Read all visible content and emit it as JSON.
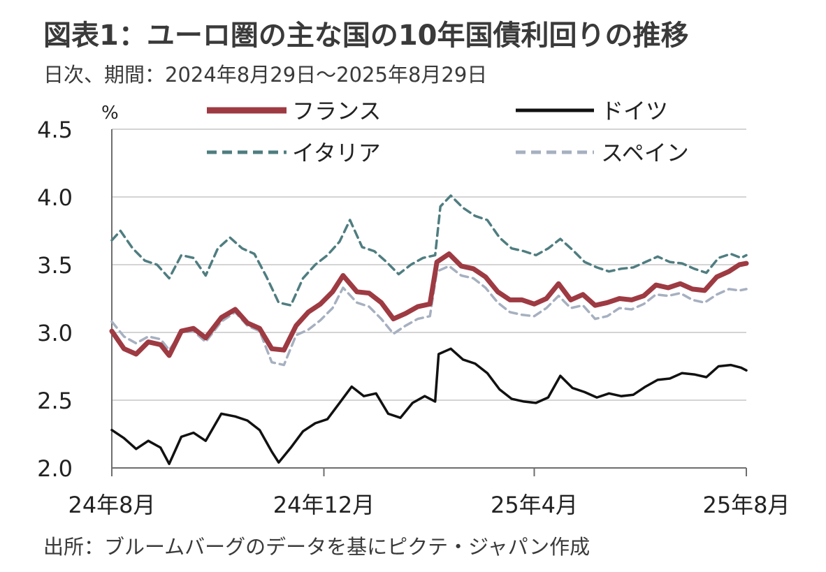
{
  "title": "図表1：ユーロ圏の主な国の10年国債利回りの推移",
  "subtitle": "日次、期間：2024年8月29日～2025年8月29日",
  "source": "出所：ブルームバーグのデータを基にピクテ・ジャパン作成",
  "chart_data": {
    "type": "line",
    "ylabel": "%",
    "ylim": [
      2.0,
      4.5
    ],
    "yticks": [
      "2.0",
      "2.5",
      "3.0",
      "3.5",
      "4.0",
      "4.5"
    ],
    "ytick_values": [
      2.0,
      2.5,
      3.0,
      3.5,
      4.0,
      4.5
    ],
    "xticks": [
      "24年8月",
      "24年12月",
      "25年4月",
      "25年8月"
    ],
    "xtick_values": [
      "2024-08-29",
      "2024-12-29",
      "2025-04-29",
      "2025-08-29"
    ],
    "xlim": [
      "2024-08-29",
      "2025-08-29"
    ],
    "grid": "horizontal",
    "legend": "top",
    "series": [
      {
        "name": "フランス",
        "color": "#9e3a42",
        "dash": "solid",
        "points": [
          [
            "2024-08-29",
            3.01
          ],
          [
            "2024-09-05",
            2.88
          ],
          [
            "2024-09-12",
            2.84
          ],
          [
            "2024-09-19",
            2.93
          ],
          [
            "2024-09-26",
            2.91
          ],
          [
            "2024-10-01",
            2.83
          ],
          [
            "2024-10-08",
            3.01
          ],
          [
            "2024-10-15",
            3.03
          ],
          [
            "2024-10-22",
            2.96
          ],
          [
            "2024-10-31",
            3.11
          ],
          [
            "2024-11-08",
            3.17
          ],
          [
            "2024-11-15",
            3.07
          ],
          [
            "2024-11-22",
            3.03
          ],
          [
            "2024-11-29",
            2.88
          ],
          [
            "2024-12-06",
            2.87
          ],
          [
            "2024-12-13",
            3.05
          ],
          [
            "2024-12-20",
            3.15
          ],
          [
            "2024-12-27",
            3.21
          ],
          [
            "2025-01-03",
            3.3
          ],
          [
            "2025-01-09",
            3.42
          ],
          [
            "2025-01-17",
            3.3
          ],
          [
            "2025-01-24",
            3.29
          ],
          [
            "2025-01-31",
            3.22
          ],
          [
            "2025-02-07",
            3.1
          ],
          [
            "2025-02-14",
            3.14
          ],
          [
            "2025-02-21",
            3.19
          ],
          [
            "2025-02-28",
            3.21
          ],
          [
            "2025-03-04",
            3.52
          ],
          [
            "2025-03-11",
            3.58
          ],
          [
            "2025-03-18",
            3.49
          ],
          [
            "2025-03-25",
            3.47
          ],
          [
            "2025-04-01",
            3.41
          ],
          [
            "2025-04-08",
            3.3
          ],
          [
            "2025-04-15",
            3.24
          ],
          [
            "2025-04-22",
            3.24
          ],
          [
            "2025-04-29",
            3.21
          ],
          [
            "2025-05-06",
            3.25
          ],
          [
            "2025-05-13",
            3.36
          ],
          [
            "2025-05-20",
            3.24
          ],
          [
            "2025-05-27",
            3.28
          ],
          [
            "2025-06-03",
            3.2
          ],
          [
            "2025-06-10",
            3.22
          ],
          [
            "2025-06-17",
            3.25
          ],
          [
            "2025-06-24",
            3.24
          ],
          [
            "2025-07-01",
            3.27
          ],
          [
            "2025-07-08",
            3.35
          ],
          [
            "2025-07-15",
            3.33
          ],
          [
            "2025-07-22",
            3.36
          ],
          [
            "2025-07-29",
            3.32
          ],
          [
            "2025-08-05",
            3.31
          ],
          [
            "2025-08-12",
            3.41
          ],
          [
            "2025-08-19",
            3.45
          ],
          [
            "2025-08-25",
            3.5
          ],
          [
            "2025-08-29",
            3.51
          ]
        ]
      },
      {
        "name": "ドイツ",
        "color": "#111111",
        "dash": "solid",
        "points": [
          [
            "2024-08-29",
            2.28
          ],
          [
            "2024-09-05",
            2.22
          ],
          [
            "2024-09-12",
            2.14
          ],
          [
            "2024-09-19",
            2.2
          ],
          [
            "2024-09-26",
            2.15
          ],
          [
            "2024-10-01",
            2.03
          ],
          [
            "2024-10-08",
            2.23
          ],
          [
            "2024-10-15",
            2.26
          ],
          [
            "2024-10-22",
            2.2
          ],
          [
            "2024-10-31",
            2.4
          ],
          [
            "2024-11-08",
            2.38
          ],
          [
            "2024-11-15",
            2.35
          ],
          [
            "2024-11-22",
            2.28
          ],
          [
            "2024-11-29",
            2.12
          ],
          [
            "2024-12-03",
            2.04
          ],
          [
            "2024-12-10",
            2.15
          ],
          [
            "2024-12-17",
            2.27
          ],
          [
            "2024-12-24",
            2.33
          ],
          [
            "2024-12-31",
            2.36
          ],
          [
            "2025-01-07",
            2.48
          ],
          [
            "2025-01-14",
            2.6
          ],
          [
            "2025-01-21",
            2.53
          ],
          [
            "2025-01-28",
            2.55
          ],
          [
            "2025-02-04",
            2.4
          ],
          [
            "2025-02-11",
            2.37
          ],
          [
            "2025-02-18",
            2.48
          ],
          [
            "2025-02-25",
            2.53
          ],
          [
            "2025-03-03",
            2.49
          ],
          [
            "2025-03-05",
            2.84
          ],
          [
            "2025-03-12",
            2.88
          ],
          [
            "2025-03-19",
            2.8
          ],
          [
            "2025-03-26",
            2.77
          ],
          [
            "2025-04-02",
            2.7
          ],
          [
            "2025-04-09",
            2.58
          ],
          [
            "2025-04-16",
            2.51
          ],
          [
            "2025-04-23",
            2.49
          ],
          [
            "2025-04-30",
            2.48
          ],
          [
            "2025-05-07",
            2.52
          ],
          [
            "2025-05-14",
            2.68
          ],
          [
            "2025-05-21",
            2.59
          ],
          [
            "2025-05-28",
            2.56
          ],
          [
            "2025-06-04",
            2.52
          ],
          [
            "2025-06-11",
            2.55
          ],
          [
            "2025-06-18",
            2.53
          ],
          [
            "2025-06-25",
            2.54
          ],
          [
            "2025-07-02",
            2.6
          ],
          [
            "2025-07-09",
            2.65
          ],
          [
            "2025-07-16",
            2.66
          ],
          [
            "2025-07-23",
            2.7
          ],
          [
            "2025-07-30",
            2.69
          ],
          [
            "2025-08-06",
            2.67
          ],
          [
            "2025-08-13",
            2.75
          ],
          [
            "2025-08-20",
            2.76
          ],
          [
            "2025-08-26",
            2.74
          ],
          [
            "2025-08-29",
            2.72
          ]
        ]
      },
      {
        "name": "イタリア",
        "color": "#4f7d80",
        "dash": "dashed",
        "points": [
          [
            "2024-08-29",
            3.68
          ],
          [
            "2024-09-03",
            3.75
          ],
          [
            "2024-09-10",
            3.62
          ],
          [
            "2024-09-17",
            3.53
          ],
          [
            "2024-09-24",
            3.5
          ],
          [
            "2024-10-01",
            3.4
          ],
          [
            "2024-10-08",
            3.57
          ],
          [
            "2024-10-15",
            3.55
          ],
          [
            "2024-10-22",
            3.42
          ],
          [
            "2024-10-29",
            3.62
          ],
          [
            "2024-11-05",
            3.7
          ],
          [
            "2024-11-12",
            3.62
          ],
          [
            "2024-11-19",
            3.58
          ],
          [
            "2024-11-26",
            3.41
          ],
          [
            "2024-12-03",
            3.22
          ],
          [
            "2024-12-10",
            3.2
          ],
          [
            "2024-12-17",
            3.4
          ],
          [
            "2024-12-24",
            3.5
          ],
          [
            "2024-12-31",
            3.57
          ],
          [
            "2025-01-07",
            3.67
          ],
          [
            "2025-01-13",
            3.83
          ],
          [
            "2025-01-20",
            3.63
          ],
          [
            "2025-01-27",
            3.6
          ],
          [
            "2025-02-03",
            3.52
          ],
          [
            "2025-02-10",
            3.43
          ],
          [
            "2025-02-17",
            3.5
          ],
          [
            "2025-02-24",
            3.55
          ],
          [
            "2025-03-03",
            3.57
          ],
          [
            "2025-03-06",
            3.93
          ],
          [
            "2025-03-12",
            4.01
          ],
          [
            "2025-03-19",
            3.92
          ],
          [
            "2025-03-26",
            3.86
          ],
          [
            "2025-04-02",
            3.83
          ],
          [
            "2025-04-09",
            3.7
          ],
          [
            "2025-04-16",
            3.62
          ],
          [
            "2025-04-23",
            3.6
          ],
          [
            "2025-04-30",
            3.57
          ],
          [
            "2025-05-07",
            3.62
          ],
          [
            "2025-05-14",
            3.69
          ],
          [
            "2025-05-21",
            3.61
          ],
          [
            "2025-05-28",
            3.52
          ],
          [
            "2025-06-04",
            3.48
          ],
          [
            "2025-06-11",
            3.45
          ],
          [
            "2025-06-18",
            3.47
          ],
          [
            "2025-06-25",
            3.48
          ],
          [
            "2025-07-02",
            3.52
          ],
          [
            "2025-07-09",
            3.56
          ],
          [
            "2025-07-16",
            3.52
          ],
          [
            "2025-07-23",
            3.51
          ],
          [
            "2025-07-30",
            3.47
          ],
          [
            "2025-08-06",
            3.44
          ],
          [
            "2025-08-13",
            3.55
          ],
          [
            "2025-08-20",
            3.58
          ],
          [
            "2025-08-26",
            3.55
          ],
          [
            "2025-08-29",
            3.57
          ]
        ]
      },
      {
        "name": "スペイン",
        "color": "#a6b0c0",
        "dash": "dashed",
        "points": [
          [
            "2024-08-29",
            3.08
          ],
          [
            "2024-09-05",
            2.97
          ],
          [
            "2024-09-12",
            2.92
          ],
          [
            "2024-09-19",
            2.97
          ],
          [
            "2024-09-26",
            2.95
          ],
          [
            "2024-10-01",
            2.87
          ],
          [
            "2024-10-08",
            3.0
          ],
          [
            "2024-10-15",
            3.01
          ],
          [
            "2024-10-22",
            2.93
          ],
          [
            "2024-10-31",
            3.08
          ],
          [
            "2024-11-08",
            3.15
          ],
          [
            "2024-11-15",
            3.05
          ],
          [
            "2024-11-22",
            3.01
          ],
          [
            "2024-11-29",
            2.78
          ],
          [
            "2024-12-06",
            2.76
          ],
          [
            "2024-12-13",
            2.98
          ],
          [
            "2024-12-20",
            3.02
          ],
          [
            "2024-12-27",
            3.09
          ],
          [
            "2025-01-03",
            3.18
          ],
          [
            "2025-01-09",
            3.33
          ],
          [
            "2025-01-17",
            3.22
          ],
          [
            "2025-01-24",
            3.19
          ],
          [
            "2025-01-31",
            3.1
          ],
          [
            "2025-02-07",
            2.99
          ],
          [
            "2025-02-14",
            3.05
          ],
          [
            "2025-02-21",
            3.1
          ],
          [
            "2025-02-28",
            3.12
          ],
          [
            "2025-03-04",
            3.45
          ],
          [
            "2025-03-11",
            3.49
          ],
          [
            "2025-03-18",
            3.42
          ],
          [
            "2025-03-25",
            3.4
          ],
          [
            "2025-04-01",
            3.33
          ],
          [
            "2025-04-08",
            3.22
          ],
          [
            "2025-04-15",
            3.15
          ],
          [
            "2025-04-22",
            3.13
          ],
          [
            "2025-04-29",
            3.12
          ],
          [
            "2025-05-06",
            3.18
          ],
          [
            "2025-05-13",
            3.27
          ],
          [
            "2025-05-20",
            3.18
          ],
          [
            "2025-05-27",
            3.2
          ],
          [
            "2025-06-03",
            3.1
          ],
          [
            "2025-06-10",
            3.12
          ],
          [
            "2025-06-17",
            3.18
          ],
          [
            "2025-06-24",
            3.17
          ],
          [
            "2025-07-01",
            3.21
          ],
          [
            "2025-07-08",
            3.28
          ],
          [
            "2025-07-15",
            3.27
          ],
          [
            "2025-07-22",
            3.29
          ],
          [
            "2025-07-29",
            3.24
          ],
          [
            "2025-08-05",
            3.22
          ],
          [
            "2025-08-12",
            3.28
          ],
          [
            "2025-08-19",
            3.32
          ],
          [
            "2025-08-25",
            3.31
          ],
          [
            "2025-08-29",
            3.32
          ]
        ]
      }
    ]
  }
}
